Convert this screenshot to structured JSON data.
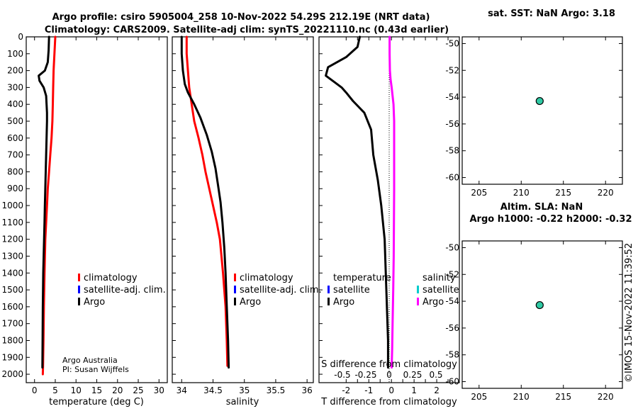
{
  "header": {
    "title_line1": "Argo profile: csiro 5905004_258 10-Nov-2022 54.29S 212.19E (NRT data)",
    "title_line2": "Climatology: CARS2009. Satellite-adj clim: synTS_20221110.nc (0.43d earlier)"
  },
  "credits": {
    "org": "Argo Australia",
    "pi": "PI: Susan Wijffels",
    "copyright": "©IMOS 15-Nov-2022 11:39:52"
  },
  "legend": {
    "climatology": "climatology",
    "satellite_adj": "satellite-adj. clim.",
    "argo": "Argo",
    "temperature_head": "temperature",
    "salinity_head": "salinity",
    "satellite": "satellite",
    "argo_short": "Argo"
  },
  "colors": {
    "argo": "#000000",
    "climatology": "#ff0000",
    "satellite": "#0000ff",
    "salinity_diff": "#ff00ff",
    "salinity_sat": "#00cccc",
    "marker": "#2fc9a4"
  },
  "chart_data": [
    {
      "id": "temperature",
      "type": "line",
      "xlabel": "temperature (deg C)",
      "ylabel": "",
      "xlim": [
        -2,
        32
      ],
      "ylim": [
        2050,
        0
      ],
      "xticks": [
        0,
        5,
        10,
        15,
        20,
        25,
        30
      ],
      "yticks": [
        0,
        100,
        200,
        300,
        400,
        500,
        600,
        700,
        800,
        900,
        1000,
        1100,
        1200,
        1300,
        1400,
        1500,
        1600,
        1700,
        1800,
        1900,
        2000
      ],
      "series": [
        {
          "name": "climatology",
          "color": "#ff0000",
          "x": [
            5.0,
            4.8,
            4.6,
            4.5,
            4.4,
            4.3,
            4.1,
            3.8,
            3.5,
            3.2,
            3.0,
            2.8,
            2.6,
            2.4,
            2.25,
            2.15,
            2.05,
            2.0
          ],
          "y": [
            0,
            100,
            200,
            300,
            400,
            500,
            600,
            700,
            800,
            900,
            1000,
            1100,
            1200,
            1400,
            1600,
            1800,
            1950,
            2000
          ]
        },
        {
          "name": "Argo",
          "color": "#000000",
          "x": [
            3.5,
            3.4,
            3.2,
            2.5,
            1.0,
            1.2,
            2.2,
            2.8,
            2.9,
            3.0,
            3.0,
            2.9,
            2.8,
            2.7,
            2.6,
            2.5,
            2.4,
            2.3,
            2.2,
            2.1,
            2.0,
            1.95,
            1.9
          ],
          "y": [
            0,
            80,
            150,
            200,
            230,
            260,
            300,
            350,
            400,
            450,
            500,
            600,
            700,
            800,
            900,
            1000,
            1100,
            1200,
            1300,
            1400,
            1600,
            1800,
            1960
          ]
        }
      ]
    },
    {
      "id": "salinity",
      "type": "line",
      "xlabel": "salinity",
      "xlim": [
        33.85,
        36.1
      ],
      "ylim": [
        2050,
        0
      ],
      "xticks": [
        34,
        34.5,
        35,
        35.5,
        36
      ],
      "series": [
        {
          "name": "climatology",
          "color": "#ff0000",
          "x": [
            34.08,
            34.08,
            34.1,
            34.12,
            34.16,
            34.2,
            34.27,
            34.33,
            34.38,
            34.44,
            34.5,
            34.56,
            34.61,
            34.66,
            34.7,
            34.72,
            34.73
          ],
          "y": [
            0,
            100,
            200,
            300,
            400,
            500,
            600,
            700,
            800,
            900,
            1000,
            1100,
            1200,
            1400,
            1600,
            1800,
            1950
          ]
        },
        {
          "name": "Argo",
          "color": "#000000",
          "x": [
            34.0,
            34.0,
            34.02,
            34.05,
            34.1,
            34.2,
            34.3,
            34.4,
            34.48,
            34.54,
            34.58,
            34.62,
            34.65,
            34.68,
            34.7,
            34.72,
            34.74,
            34.75
          ],
          "y": [
            0,
            100,
            200,
            280,
            330,
            400,
            480,
            580,
            680,
            780,
            880,
            980,
            1100,
            1250,
            1400,
            1600,
            1800,
            1960
          ]
        }
      ]
    },
    {
      "id": "differences",
      "type": "line",
      "xlabel": "T difference from climatology",
      "xlabel_top": "S difference from climatology",
      "xlim": [
        -3.2,
        3.0
      ],
      "ylim": [
        2050,
        0
      ],
      "xticks": [
        -2,
        -1.5,
        -1,
        -0.5,
        0,
        0.5,
        1,
        1.5,
        2,
        2.5
      ],
      "xtick_labels": [
        "-2",
        "",
        "-1",
        "",
        "0",
        "",
        "1",
        "",
        "2",
        ""
      ],
      "xticks_top": [
        -0.5,
        -0.25,
        0,
        0.25,
        0.5
      ],
      "series": [
        {
          "name": "T difference (Argo)",
          "color": "#000000",
          "x": [
            -1.4,
            -1.5,
            -2.0,
            -2.8,
            -2.9,
            -2.5,
            -2.2,
            -2.0,
            -1.7,
            -1.2,
            -0.9,
            -0.8,
            -0.6,
            -0.45,
            -0.3,
            -0.25,
            -0.2,
            -0.15,
            -0.15
          ],
          "y": [
            0,
            60,
            120,
            180,
            230,
            270,
            300,
            330,
            380,
            450,
            550,
            700,
            850,
            1000,
            1200,
            1400,
            1600,
            1800,
            1960
          ]
        },
        {
          "name": "S difference (Argo)",
          "color": "#ff00ff",
          "x": [
            -0.08,
            -0.08,
            -0.07,
            -0.04,
            0.01,
            0.05,
            0.09,
            0.12,
            0.12,
            0.12,
            0.11,
            0.1,
            0.08,
            0.05,
            0.03,
            0.01
          ],
          "y": [
            0,
            100,
            200,
            250,
            300,
            350,
            400,
            500,
            700,
            900,
            1100,
            1300,
            1500,
            1700,
            1850,
            1960
          ]
        }
      ]
    },
    {
      "id": "sst_map",
      "type": "scatter",
      "title": "sat. SST: NaN Argo: 3.18",
      "xlim": [
        203,
        222
      ],
      "ylim": [
        -60.5,
        -49.5
      ],
      "xticks": [
        205,
        210,
        215,
        220
      ],
      "yticks": [
        -50,
        -52,
        -54,
        -56,
        -58,
        -60
      ],
      "points": [
        {
          "x": 212.19,
          "y": -54.29
        }
      ]
    },
    {
      "id": "sla_map",
      "type": "scatter",
      "title": "Altim. SLA: NaN",
      "title2": "Argo h1000: -0.22 h2000: -0.32",
      "xlim": [
        203,
        222
      ],
      "ylim": [
        -60.5,
        -49.5
      ],
      "xticks": [
        205,
        210,
        215,
        220
      ],
      "yticks": [
        -50,
        -52,
        -54,
        -56,
        -58,
        -60
      ],
      "points": [
        {
          "x": 212.19,
          "y": -54.29
        }
      ]
    }
  ]
}
